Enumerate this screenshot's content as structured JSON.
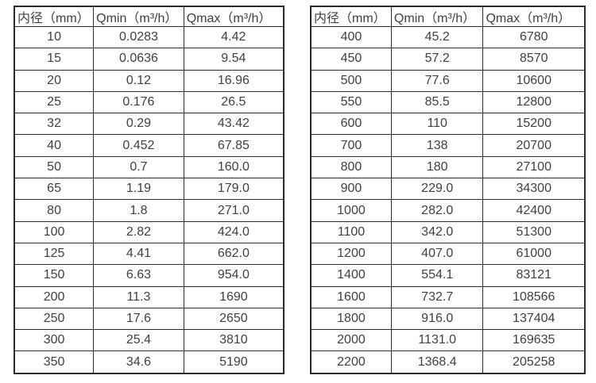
{
  "colors": {
    "border": "#2b2b2b",
    "text": "#404040",
    "background": "#ffffff"
  },
  "tables": [
    {
      "name": "flow-spec-small-diameters",
      "headers": [
        "内径（mm）",
        "Qmin（m³/h）",
        "Qmax（m³/h）"
      ],
      "rows": [
        [
          "10",
          "0.0283",
          "4.42"
        ],
        [
          "15",
          "0.0636",
          "9.54"
        ],
        [
          "20",
          "0.12",
          "16.96"
        ],
        [
          "25",
          "0.176",
          "26.5"
        ],
        [
          "32",
          "0.29",
          "43.42"
        ],
        [
          "40",
          "0.452",
          "67.85"
        ],
        [
          "50",
          "0.7",
          "160.0"
        ],
        [
          "65",
          "1.19",
          "179.0"
        ],
        [
          "80",
          "1.8",
          "271.0"
        ],
        [
          "100",
          "2.82",
          "424.0"
        ],
        [
          "125",
          "4.41",
          "662.0"
        ],
        [
          "150",
          "6.63",
          "954.0"
        ],
        [
          "200",
          "11.3",
          "1690"
        ],
        [
          "250",
          "17.6",
          "2650"
        ],
        [
          "300",
          "25.4",
          "3810"
        ],
        [
          "350",
          "34.6",
          "5190"
        ]
      ]
    },
    {
      "name": "flow-spec-large-diameters",
      "headers": [
        "内径（mm）",
        "Qmin（m³/h）",
        "Qmax（m³/h）"
      ],
      "rows": [
        [
          "400",
          "45.2",
          "6780"
        ],
        [
          "450",
          "57.2",
          "8570"
        ],
        [
          "500",
          "77.6",
          "10600"
        ],
        [
          "550",
          "85.5",
          "12800"
        ],
        [
          "600",
          "110",
          "15200"
        ],
        [
          "700",
          "138",
          "20700"
        ],
        [
          "800",
          "180",
          "27100"
        ],
        [
          "900",
          "229.0",
          "34300"
        ],
        [
          "1000",
          "282.0",
          "42400"
        ],
        [
          "1100",
          "342.0",
          "51300"
        ],
        [
          "1200",
          "407.0",
          "61000"
        ],
        [
          "1400",
          "554.1",
          "83121"
        ],
        [
          "1600",
          "732.7",
          "108566"
        ],
        [
          "1800",
          "916.0",
          "137404"
        ],
        [
          "2000",
          "1131.0",
          "169635"
        ],
        [
          "2200",
          "1368.4",
          "205258"
        ]
      ]
    }
  ]
}
